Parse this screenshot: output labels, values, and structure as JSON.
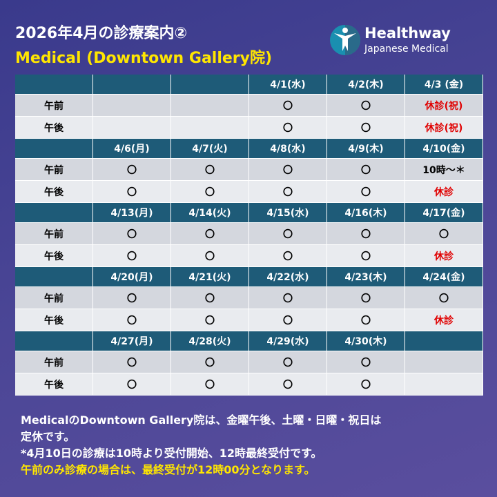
{
  "header": {
    "title": "2026年4月の診療案内②",
    "subtitle": "Medical (Downtown Gallery院)",
    "logo": {
      "name": "Healthway",
      "tagline": "Japanese Medical"
    }
  },
  "table": {
    "weeks": [
      {
        "days": [
          null,
          null,
          null,
          "4/1(水)",
          "4/2(木)",
          "4/3 (金)"
        ],
        "am": [
          "午前",
          null,
          null,
          "〇",
          "〇",
          {
            "text": "休診(祝)",
            "color": "#e00000"
          }
        ],
        "pm": [
          "午後",
          null,
          null,
          "〇",
          "〇",
          {
            "text": "休診(祝)",
            "color": "#e00000"
          }
        ]
      },
      {
        "days": [
          null,
          "4/6(月)",
          "4/7(火)",
          "4/8(水)",
          "4/9(木)",
          "4/10(金)"
        ],
        "am": [
          "午前",
          "〇",
          "〇",
          "〇",
          "〇",
          "10時～＊"
        ],
        "pm": [
          "午後",
          "〇",
          "〇",
          "〇",
          "〇",
          {
            "text": "休診",
            "color": "#e00000"
          }
        ]
      },
      {
        "days": [
          null,
          "4/13(月)",
          "4/14(火)",
          "4/15(水)",
          "4/16(木)",
          "4/17(金)"
        ],
        "am": [
          "午前",
          "〇",
          "〇",
          "〇",
          "〇",
          "〇"
        ],
        "pm": [
          "午後",
          "〇",
          "〇",
          "〇",
          "〇",
          {
            "text": "休診",
            "color": "#e00000"
          }
        ]
      },
      {
        "days": [
          null,
          "4/20(月)",
          "4/21(火)",
          "4/22(水)",
          "4/23(木)",
          "4/24(金)"
        ],
        "am": [
          "午前",
          "〇",
          "〇",
          "〇",
          "〇",
          "〇"
        ],
        "pm": [
          "午後",
          "〇",
          "〇",
          "〇",
          "〇",
          {
            "text": "休診",
            "color": "#e00000"
          }
        ]
      },
      {
        "days": [
          null,
          "4/27(月)",
          "4/28(火)",
          "4/29(水)",
          "4/30(木)",
          null
        ],
        "am": [
          "午前",
          "〇",
          "〇",
          "〇",
          "〇",
          null
        ],
        "pm": [
          "午後",
          "〇",
          "〇",
          "〇",
          "〇",
          null
        ]
      }
    ]
  },
  "footer": {
    "lines": [
      {
        "text": "MedicalのDowntown Gallery院は、金曜午後、土曜・日曜・祝日は",
        "color": "#ffffff"
      },
      {
        "text": "定休です。",
        "color": "#ffffff"
      },
      {
        "text": "*4月10日の診療は10時より受付開始、12時最終受付です。",
        "color": "#ffffff"
      },
      {
        "text": "午前のみ診療の場合は、最終受付が12時00分となります。",
        "color": "#ffe600"
      }
    ]
  }
}
